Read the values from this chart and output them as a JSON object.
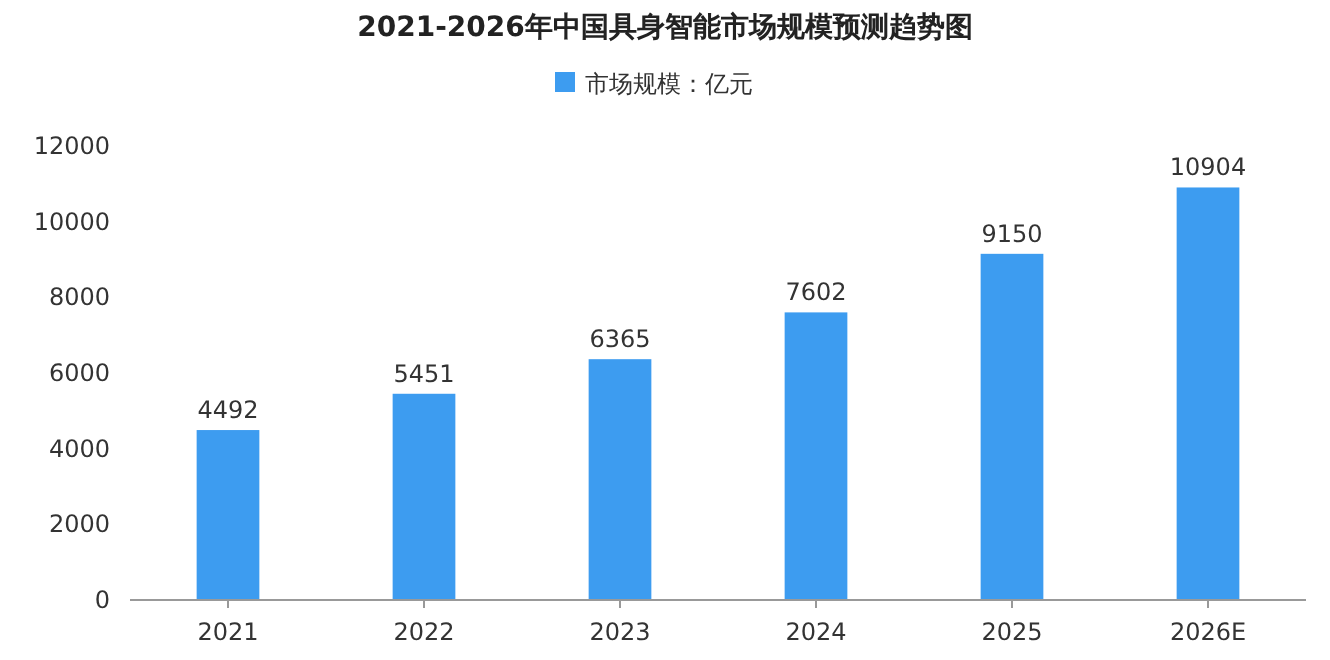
{
  "chart_data": {
    "type": "bar",
    "title": "2021-2026年中国具身智能市场规模预测趋势图",
    "categories": [
      "2021",
      "2022",
      "2023",
      "2024",
      "2025",
      "2026E"
    ],
    "series": [
      {
        "name": "市场规模：亿元",
        "color": "#3d9cf0",
        "values": [
          4492,
          5451,
          6365,
          7602,
          9150,
          10904
        ]
      }
    ],
    "ylim": [
      0,
      12000
    ],
    "yticks": [
      0,
      2000,
      4000,
      6000,
      8000,
      10000,
      12000
    ],
    "data_labels": true,
    "legend": "top",
    "grid": false
  }
}
